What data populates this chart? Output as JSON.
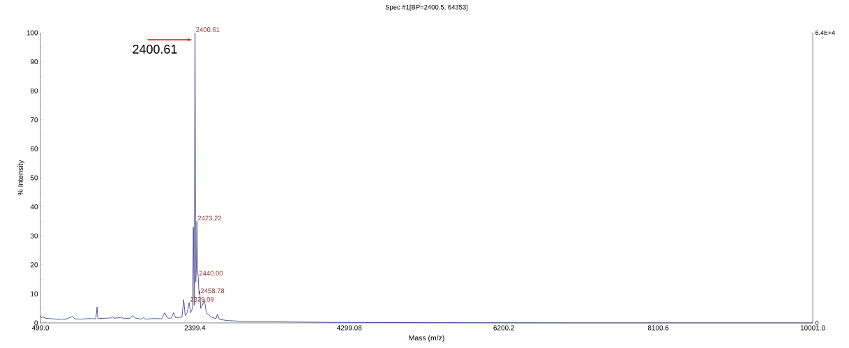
{
  "chart_data": {
    "type": "line",
    "title": "Spec #1[BP=2400.5, 64353]",
    "xlabel": "Mass (m/z)",
    "ylabel": "% Intensity",
    "color": "#2b2f7f",
    "marker": "none",
    "line_style": "solid",
    "grid": false,
    "x": [
      499,
      510,
      530,
      560,
      600,
      650,
      700,
      760,
      800,
      894,
      920,
      1000,
      1100,
      1180,
      1196,
      1205,
      1300,
      1370,
      1387,
      1400,
      1480,
      1502,
      1520,
      1600,
      1633,
      1660,
      1740,
      1765,
      1790,
      1900,
      1990,
      2028,
      2060,
      2110,
      2136,
      2160,
      2240,
      2261,
      2280,
      2305,
      2329.09,
      2345,
      2370,
      2380,
      2390,
      2400.61,
      2410,
      2418,
      2423.22,
      2432,
      2440,
      2450,
      2458.78,
      2470,
      2490,
      2515,
      2540,
      2600,
      2660,
      2676,
      2700,
      2800,
      3000,
      3300,
      3600,
      4000,
      5000,
      7000,
      10001
    ],
    "values": [
      2.5,
      1.8,
      2.0,
      1.6,
      1.5,
      1.4,
      1.2,
      1.3,
      1.2,
      2.2,
      1.4,
      1.3,
      1.5,
      1.4,
      5.5,
      1.5,
      1.6,
      1.7,
      2.2,
      1.6,
      1.8,
      2.0,
      1.5,
      1.6,
      2.5,
      1.7,
      1.3,
      1.8,
      1.3,
      1.5,
      1.4,
      3.5,
      1.7,
      1.6,
      3.5,
      1.8,
      2.0,
      8,
      2.5,
      3.5,
      7,
      3.5,
      5,
      33,
      6,
      100,
      14,
      20,
      35,
      18,
      16,
      10,
      11,
      5,
      6,
      8,
      3.5,
      2,
      1.5,
      3,
      1.2,
      0.8,
      0.5,
      0.4,
      0.3,
      0.2,
      0.1,
      0,
      0
    ],
    "xlim": [
      499,
      10001
    ],
    "ylim": [
      0,
      100
    ],
    "xticks": [
      {
        "value": 499,
        "label": "499.0"
      },
      2399.4,
      4299.08,
      6200.2,
      8100.6,
      {
        "value": 10001,
        "label": "10001.0"
      }
    ],
    "yticks": [
      0,
      10,
      20,
      30,
      40,
      50,
      60,
      70,
      80,
      90,
      100
    ],
    "y2lim": [
      0,
      64353
    ],
    "y2ticks": [
      0,
      {
        "value": 64353,
        "label": "6.4E+4"
      }
    ],
    "annotations": [
      {
        "text": "2400.61",
        "x": 2400.61,
        "y": 100
      },
      {
        "text": "2423.22",
        "x": 2423.22,
        "y": 35
      },
      {
        "text": "2440.00",
        "x": 2440,
        "y": 16
      },
      {
        "text": "2458.78",
        "x": 2458.78,
        "y": 10
      },
      {
        "text": "2329.09",
        "x": 2329.09,
        "y": 7
      },
      "2400.61"
    ]
  }
}
